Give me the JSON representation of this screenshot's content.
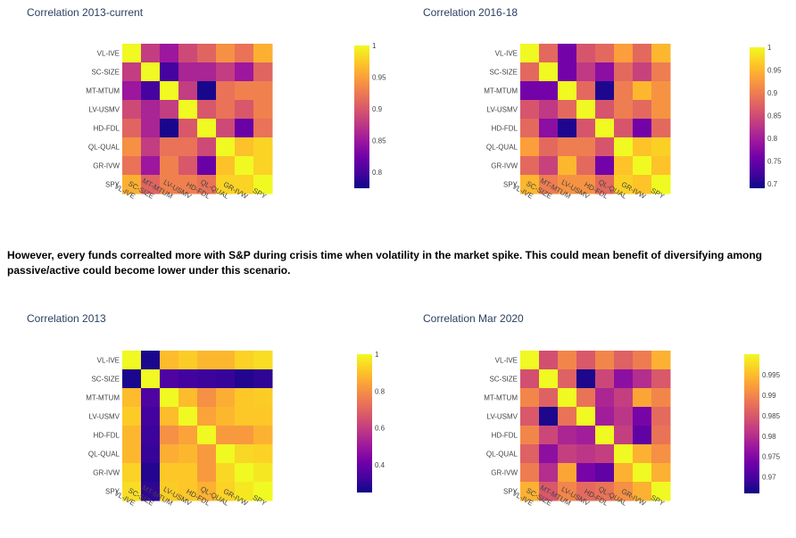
{
  "note": "However, every funds correalted more with S&P during crisis time when volatility in the market spike. This could mean benefit of diversifying among passive/active could become lower under this scenario.",
  "labels": [
    "VL-IVE",
    "SC-SIZE",
    "MT-MTUM",
    "LV-USMV",
    "HD-FDL",
    "QL-QUAL",
    "GR-IVW",
    "SPY"
  ],
  "colorscale": [
    "#0d0887",
    "#46039f",
    "#7201a8",
    "#9c179e",
    "#bd3786",
    "#d8576b",
    "#ed7953",
    "#fb9f3a",
    "#fdca26",
    "#f0f921"
  ],
  "chart_data": [
    {
      "type": "heatmap",
      "title": "Correlation 2013-current",
      "zmin": 0.775,
      "zmax": 1,
      "colorbar_ticks": [
        0.8,
        0.85,
        0.9,
        0.95,
        1
      ],
      "z": [
        [
          1.0,
          0.88,
          0.85,
          0.89,
          0.91,
          0.94,
          0.92,
          0.96
        ],
        [
          0.88,
          1.0,
          0.8,
          0.86,
          0.86,
          0.88,
          0.85,
          0.91
        ],
        [
          0.85,
          0.8,
          1.0,
          0.88,
          0.78,
          0.92,
          0.93,
          0.93
        ],
        [
          0.89,
          0.86,
          0.88,
          1.0,
          0.9,
          0.92,
          0.9,
          0.93
        ],
        [
          0.91,
          0.86,
          0.78,
          0.9,
          1.0,
          0.89,
          0.82,
          0.92
        ],
        [
          0.94,
          0.88,
          0.92,
          0.92,
          0.89,
          1.0,
          0.97,
          0.98
        ],
        [
          0.92,
          0.85,
          0.93,
          0.9,
          0.82,
          0.97,
          1.0,
          0.98
        ],
        [
          0.96,
          0.91,
          0.93,
          0.93,
          0.92,
          0.98,
          0.98,
          1.0
        ]
      ]
    },
    {
      "type": "heatmap",
      "title": "Correlation 2016-18",
      "zmin": 0.69,
      "zmax": 1,
      "colorbar_ticks": [
        0.7,
        0.75,
        0.8,
        0.85,
        0.9,
        0.95,
        1
      ],
      "z": [
        [
          1.0,
          0.88,
          0.76,
          0.86,
          0.88,
          0.93,
          0.88,
          0.95
        ],
        [
          0.88,
          1.0,
          0.76,
          0.83,
          0.78,
          0.88,
          0.84,
          0.9
        ],
        [
          0.76,
          0.76,
          1.0,
          0.88,
          0.7,
          0.9,
          0.95,
          0.92
        ],
        [
          0.86,
          0.83,
          0.88,
          1.0,
          0.86,
          0.9,
          0.88,
          0.92
        ],
        [
          0.88,
          0.78,
          0.7,
          0.86,
          1.0,
          0.86,
          0.76,
          0.88
        ],
        [
          0.93,
          0.88,
          0.9,
          0.9,
          0.86,
          1.0,
          0.96,
          0.97
        ],
        [
          0.88,
          0.84,
          0.95,
          0.88,
          0.76,
          0.96,
          1.0,
          0.96
        ],
        [
          0.95,
          0.9,
          0.92,
          0.92,
          0.88,
          0.97,
          0.96,
          1.0
        ]
      ]
    },
    {
      "type": "heatmap",
      "title": "Correlation 2013",
      "zmin": 0.25,
      "zmax": 1,
      "colorbar_ticks": [
        0.4,
        0.6,
        0.8,
        1
      ],
      "z": [
        [
          1.0,
          0.27,
          0.89,
          0.92,
          0.88,
          0.88,
          0.93,
          0.95
        ],
        [
          0.27,
          1.0,
          0.35,
          0.33,
          0.32,
          0.31,
          0.28,
          0.3
        ],
        [
          0.89,
          0.35,
          1.0,
          0.89,
          0.8,
          0.86,
          0.91,
          0.92
        ],
        [
          0.92,
          0.33,
          0.89,
          1.0,
          0.84,
          0.88,
          0.91,
          0.91
        ],
        [
          0.88,
          0.32,
          0.8,
          0.84,
          1.0,
          0.82,
          0.82,
          0.87
        ],
        [
          0.88,
          0.31,
          0.86,
          0.88,
          0.82,
          1.0,
          0.94,
          0.93
        ],
        [
          0.93,
          0.28,
          0.91,
          0.91,
          0.82,
          0.94,
          1.0,
          0.97
        ],
        [
          0.95,
          0.3,
          0.92,
          0.91,
          0.87,
          0.93,
          0.97,
          1.0
        ]
      ]
    },
    {
      "type": "heatmap",
      "title": "Correlation Mar 2020",
      "zmin": 0.966,
      "zmax": 1,
      "colorbar_ticks": [
        0.97,
        0.975,
        0.98,
        0.985,
        0.99,
        0.995
      ],
      "z": [
        [
          1.0,
          0.984,
          0.99,
          0.985,
          0.99,
          0.986,
          0.989,
          0.994
        ],
        [
          0.984,
          1.0,
          0.986,
          0.967,
          0.983,
          0.976,
          0.98,
          0.985
        ],
        [
          0.99,
          0.986,
          1.0,
          0.988,
          0.979,
          0.982,
          0.993,
          0.99
        ],
        [
          0.985,
          0.967,
          0.988,
          1.0,
          0.978,
          0.981,
          0.974,
          0.987
        ],
        [
          0.99,
          0.983,
          0.979,
          0.978,
          1.0,
          0.982,
          0.972,
          0.988
        ],
        [
          0.986,
          0.976,
          0.982,
          0.981,
          0.982,
          1.0,
          0.994,
          0.991
        ],
        [
          0.989,
          0.98,
          0.993,
          0.974,
          0.972,
          0.994,
          1.0,
          0.994
        ],
        [
          0.994,
          0.985,
          0.99,
          0.987,
          0.988,
          0.991,
          0.994,
          1.0
        ]
      ]
    }
  ]
}
